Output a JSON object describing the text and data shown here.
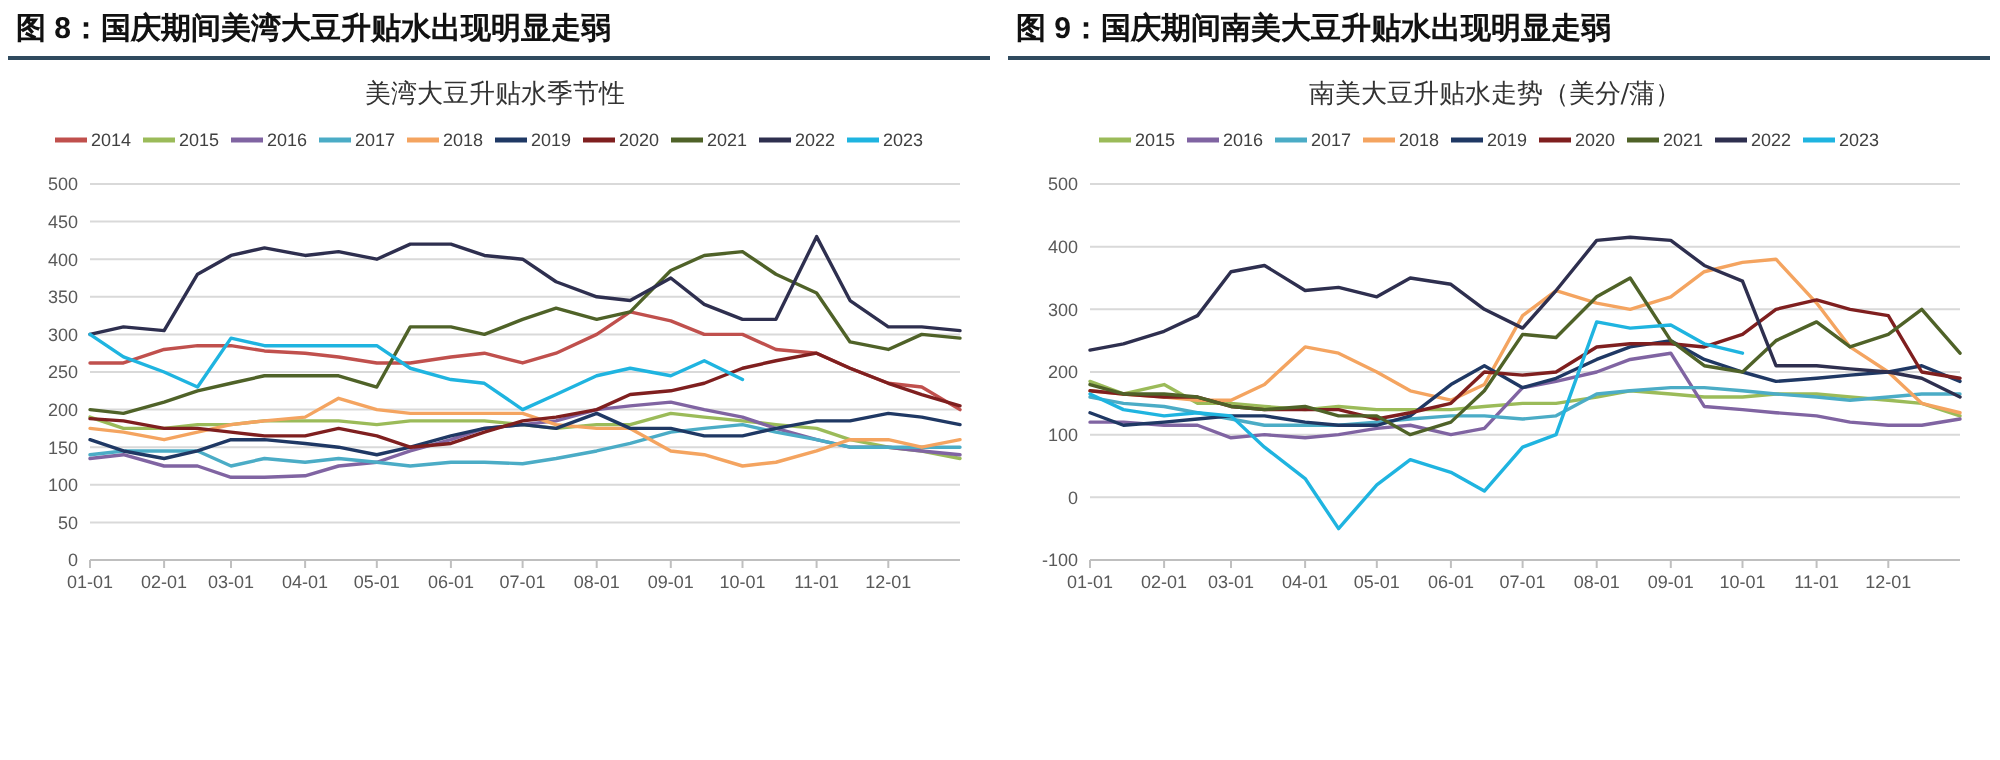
{
  "chart_data": [
    {
      "type": "line",
      "title": "图 8：国庆期间美湾大豆升贴水出现明显走弱",
      "subtitle": "美湾大豆升贴水季节性",
      "x": [
        "--01-01",
        "--01-15",
        "--02-01",
        "--02-15",
        "--03-01",
        "--03-15",
        "--04-01",
        "--04-15",
        "--05-01",
        "--05-15",
        "--06-01",
        "--06-15",
        "--07-01",
        "--07-15",
        "--08-01",
        "--08-15",
        "--09-01",
        "--09-15",
        "--10-01",
        "--10-15",
        "--11-01",
        "--11-15",
        "--12-01",
        "--12-15",
        "--12-31"
      ],
      "xlim": [
        "--01-01",
        "--12-31"
      ],
      "xticks": [
        {
          "value": "--01-01",
          "label": "01-01"
        },
        {
          "value": "--02-01",
          "label": "02-01"
        },
        {
          "value": "--03-01",
          "label": "03-01"
        },
        {
          "value": "--04-01",
          "label": "04-01"
        },
        {
          "value": "--05-01",
          "label": "05-01"
        },
        {
          "value": "--06-01",
          "label": "06-01"
        },
        {
          "value": "--07-01",
          "label": "07-01"
        },
        {
          "value": "--08-01",
          "label": "08-01"
        },
        {
          "value": "--09-01",
          "label": "09-01"
        },
        {
          "value": "--10-01",
          "label": "10-01"
        },
        {
          "value": "--11-01",
          "label": "11-01"
        },
        {
          "value": "--12-01",
          "label": "12-01"
        }
      ],
      "ylim": [
        0,
        500
      ],
      "yticks": [
        0,
        50,
        100,
        150,
        200,
        250,
        300,
        350,
        400,
        450,
        500
      ],
      "grid": "y",
      "legend": "top",
      "series": [
        {
          "name": "2014",
          "color": "#c0504d",
          "values": [
            262,
            262,
            280,
            285,
            285,
            278,
            275,
            270,
            262,
            262,
            270,
            275,
            262,
            275,
            300,
            330,
            318,
            300,
            300,
            280,
            275,
            255,
            235,
            230,
            200
          ]
        },
        {
          "name": "2015",
          "color": "#9bbb59",
          "values": [
            190,
            175,
            175,
            180,
            180,
            185,
            185,
            185,
            180,
            185,
            185,
            185,
            180,
            175,
            180,
            180,
            195,
            190,
            185,
            180,
            175,
            160,
            150,
            145,
            135
          ]
        },
        {
          "name": "2016",
          "color": "#8064a2",
          "values": [
            135,
            140,
            125,
            125,
            110,
            110,
            112,
            125,
            130,
            145,
            160,
            175,
            180,
            185,
            200,
            205,
            210,
            200,
            190,
            175,
            160,
            150,
            150,
            145,
            140
          ]
        },
        {
          "name": "2017",
          "color": "#4bacc6",
          "values": [
            140,
            145,
            145,
            145,
            125,
            135,
            130,
            135,
            130,
            125,
            130,
            130,
            128,
            135,
            145,
            155,
            170,
            175,
            180,
            170,
            160,
            150,
            150,
            150,
            150
          ]
        },
        {
          "name": "2018",
          "color": "#f4a460",
          "values": [
            175,
            170,
            160,
            170,
            180,
            185,
            190,
            215,
            200,
            195,
            195,
            195,
            195,
            180,
            175,
            175,
            145,
            140,
            125,
            130,
            145,
            160,
            160,
            150,
            160
          ]
        },
        {
          "name": "2019",
          "color": "#1f3864",
          "values": [
            160,
            145,
            135,
            145,
            160,
            160,
            155,
            150,
            140,
            150,
            165,
            175,
            180,
            175,
            195,
            175,
            175,
            165,
            165,
            175,
            185,
            185,
            195,
            190,
            180
          ]
        },
        {
          "name": "2020",
          "color": "#7f1f1f",
          "values": [
            188,
            185,
            175,
            175,
            170,
            165,
            165,
            175,
            165,
            150,
            155,
            170,
            185,
            190,
            200,
            220,
            225,
            235,
            255,
            265,
            275,
            255,
            235,
            220,
            205
          ]
        },
        {
          "name": "2021",
          "color": "#4f6228",
          "values": [
            200,
            195,
            210,
            225,
            235,
            245,
            245,
            245,
            230,
            310,
            310,
            300,
            320,
            335,
            320,
            330,
            385,
            405,
            410,
            380,
            355,
            290,
            280,
            300,
            295
          ]
        },
        {
          "name": "2022",
          "color": "#2e2f4f",
          "values": [
            300,
            310,
            305,
            380,
            405,
            415,
            405,
            410,
            400,
            420,
            420,
            405,
            400,
            370,
            350,
            345,
            375,
            340,
            320,
            320,
            430,
            345,
            310,
            310,
            305
          ]
        },
        {
          "name": "2023",
          "color": "#1fb4e0",
          "values": [
            300,
            270,
            250,
            230,
            295,
            285,
            285,
            285,
            285,
            255,
            240,
            235,
            200,
            220,
            245,
            255,
            245,
            265,
            240,
            null,
            null,
            null,
            null,
            null,
            null
          ]
        }
      ]
    },
    {
      "type": "line",
      "title": "图 9：国庆期间南美大豆升贴水出现明显走弱",
      "subtitle": "南美大豆升贴水走势（美分/蒲）",
      "x": [
        "--01-01",
        "--01-15",
        "--02-01",
        "--02-15",
        "--03-01",
        "--03-15",
        "--04-01",
        "--04-15",
        "--05-01",
        "--05-15",
        "--06-01",
        "--06-15",
        "--07-01",
        "--07-15",
        "--08-01",
        "--08-15",
        "--09-01",
        "--09-15",
        "--10-01",
        "--10-15",
        "--11-01",
        "--11-15",
        "--12-01",
        "--12-15",
        "--12-31"
      ],
      "xlim": [
        "--01-01",
        "--12-31"
      ],
      "xticks": [
        {
          "value": "--01-01",
          "label": "01-01"
        },
        {
          "value": "--02-01",
          "label": "02-01"
        },
        {
          "value": "--03-01",
          "label": "03-01"
        },
        {
          "value": "--04-01",
          "label": "04-01"
        },
        {
          "value": "--05-01",
          "label": "05-01"
        },
        {
          "value": "--06-01",
          "label": "06-01"
        },
        {
          "value": "--07-01",
          "label": "07-01"
        },
        {
          "value": "--08-01",
          "label": "08-01"
        },
        {
          "value": "--09-01",
          "label": "09-01"
        },
        {
          "value": "--10-01",
          "label": "10-01"
        },
        {
          "value": "--11-01",
          "label": "11-01"
        },
        {
          "value": "--12-01",
          "label": "12-01"
        }
      ],
      "ylim": [
        -100,
        500
      ],
      "yticks": [
        -100,
        0,
        100,
        200,
        300,
        400,
        500
      ],
      "grid": "y",
      "legend": "top",
      "series": [
        {
          "name": "2015",
          "color": "#9bbb59",
          "values": [
            185,
            165,
            180,
            150,
            150,
            145,
            140,
            145,
            140,
            140,
            140,
            145,
            150,
            150,
            160,
            170,
            165,
            160,
            160,
            165,
            165,
            160,
            155,
            150,
            130
          ]
        },
        {
          "name": "2016",
          "color": "#8064a2",
          "values": [
            120,
            120,
            115,
            115,
            95,
            100,
            95,
            100,
            110,
            115,
            100,
            110,
            175,
            185,
            200,
            220,
            230,
            145,
            140,
            135,
            130,
            120,
            115,
            115,
            125
          ]
        },
        {
          "name": "2017",
          "color": "#4bacc6",
          "values": [
            160,
            150,
            145,
            135,
            125,
            115,
            115,
            115,
            120,
            125,
            130,
            130,
            125,
            130,
            165,
            170,
            175,
            175,
            170,
            165,
            160,
            155,
            160,
            165,
            165
          ]
        },
        {
          "name": "2018",
          "color": "#f4a460",
          "values": [
            170,
            165,
            160,
            155,
            155,
            180,
            240,
            230,
            200,
            170,
            155,
            180,
            290,
            330,
            310,
            300,
            320,
            360,
            375,
            380,
            310,
            240,
            200,
            150,
            135
          ]
        },
        {
          "name": "2019",
          "color": "#1f3864",
          "values": [
            135,
            115,
            120,
            125,
            130,
            130,
            120,
            115,
            115,
            130,
            180,
            210,
            175,
            190,
            220,
            240,
            250,
            220,
            200,
            185,
            190,
            195,
            200,
            210,
            185
          ]
        },
        {
          "name": "2020",
          "color": "#7f1f1f",
          "values": [
            170,
            165,
            160,
            160,
            145,
            140,
            140,
            140,
            125,
            135,
            150,
            200,
            195,
            200,
            240,
            245,
            245,
            240,
            260,
            300,
            315,
            300,
            290,
            200,
            190
          ]
        },
        {
          "name": "2021",
          "color": "#4f6228",
          "values": [
            180,
            165,
            165,
            160,
            145,
            140,
            145,
            130,
            130,
            100,
            120,
            170,
            260,
            255,
            320,
            350,
            250,
            210,
            200,
            250,
            280,
            240,
            260,
            300,
            230
          ]
        },
        {
          "name": "2022",
          "color": "#2e2f4f",
          "values": [
            235,
            245,
            265,
            290,
            360,
            370,
            330,
            335,
            320,
            350,
            340,
            300,
            270,
            330,
            410,
            415,
            410,
            370,
            345,
            210,
            210,
            205,
            200,
            190,
            160
          ]
        },
        {
          "name": "2023",
          "color": "#1fb4e0",
          "values": [
            165,
            140,
            130,
            135,
            130,
            80,
            30,
            -50,
            20,
            60,
            40,
            10,
            80,
            100,
            280,
            270,
            275,
            245,
            230,
            null,
            null,
            null,
            null,
            null,
            null
          ]
        }
      ]
    }
  ]
}
